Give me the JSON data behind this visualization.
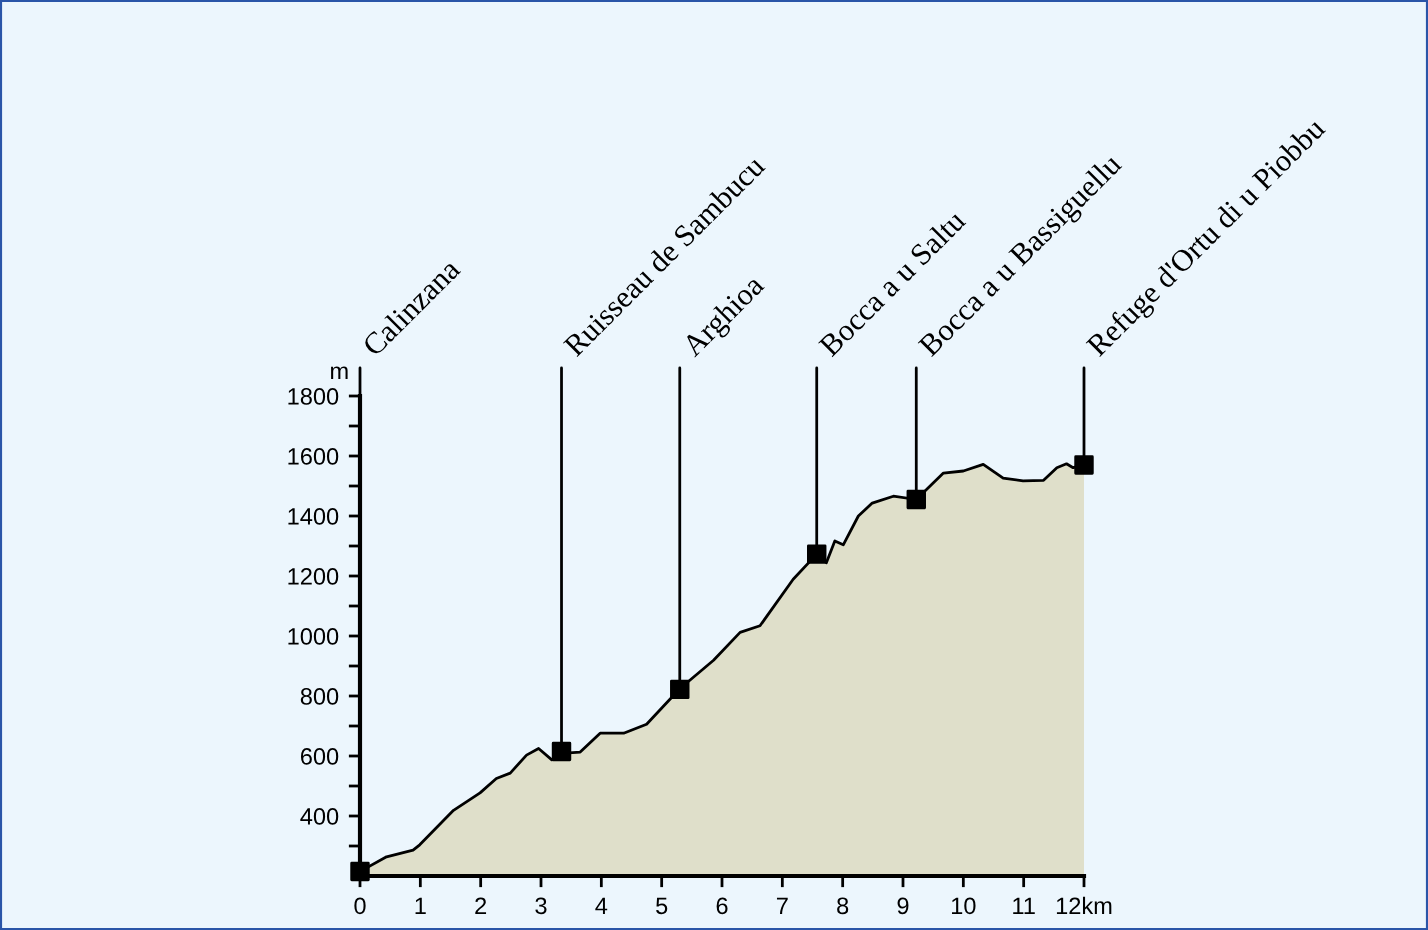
{
  "chart_data": {
    "type": "area",
    "x": [
      0,
      0.44,
      0.88,
      0.99,
      1.55,
      1.99,
      2.26,
      2.49,
      2.76,
      2.96,
      3.18,
      3.34,
      3.65,
      3.98,
      4.37,
      4.75,
      5.3,
      5.86,
      6.3,
      6.63,
      7.18,
      7.57,
      7.73,
      7.87,
      8.01,
      8.26,
      8.49,
      8.84,
      9.22,
      9.67,
      10.0,
      10.33,
      10.66,
      10.99,
      11.33,
      11.55,
      11.71,
      11.82,
      12.0
    ],
    "series": [
      {
        "color": "#dfdfca",
        "values": [
          215,
          264,
          286,
          304,
          419,
          477,
          525,
          543,
          603,
          625,
          587,
          609,
          613,
          676,
          676,
          706,
          824,
          919,
          1012,
          1034,
          1189,
          1273,
          1244,
          1317,
          1304,
          1400,
          1443,
          1466,
          1455,
          1543,
          1550,
          1572,
          1526,
          1517,
          1519,
          1561,
          1574,
          1561,
          1570
        ]
      },
      {
        "type": "scatter",
        "marker": "square",
        "color": "#000000",
        "x": [
          0,
          3.34,
          5.3,
          7.57,
          9.22,
          12.0
        ],
        "values": [
          215,
          615,
          822,
          1273,
          1455,
          1570
        ]
      }
    ],
    "ylabel": "m",
    "xlim": [
      0,
      12
    ],
    "ylim": [
      200,
      1800
    ],
    "xticks": [
      0,
      1,
      2,
      3,
      4,
      5,
      6,
      7,
      8,
      9,
      10,
      11,
      {
        "value": 12,
        "label": "12km"
      }
    ],
    "yticks": [
      {
        "value": 300,
        "label": null
      },
      400,
      {
        "value": 500,
        "label": null
      },
      600,
      {
        "value": 700,
        "label": null
      },
      800,
      {
        "value": 900,
        "label": null
      },
      1000,
      {
        "value": 1100,
        "label": null
      },
      1200,
      {
        "value": 1300,
        "label": null
      },
      1400,
      {
        "value": 1500,
        "label": null
      },
      1600,
      {
        "value": 1700,
        "label": null
      },
      1800
    ],
    "grid": false,
    "annotations": [
      {
        "text": "Calinzana",
        "x": 0,
        "y": 215
      },
      {
        "text": "Ruisseau de Sambucu",
        "x": 3.34,
        "y": 615
      },
      {
        "text": "Arghioa",
        "x": 5.3,
        "y": 822
      },
      {
        "text": "Bocca a u Saltu",
        "x": 7.57,
        "y": 1273
      },
      {
        "text": "Bocca a u Bassiguellu",
        "x": 9.22,
        "y": 1455
      },
      {
        "text": "Refuge d'Ortu di u Piobbu",
        "x": 12.0,
        "y": 1570
      }
    ]
  }
}
